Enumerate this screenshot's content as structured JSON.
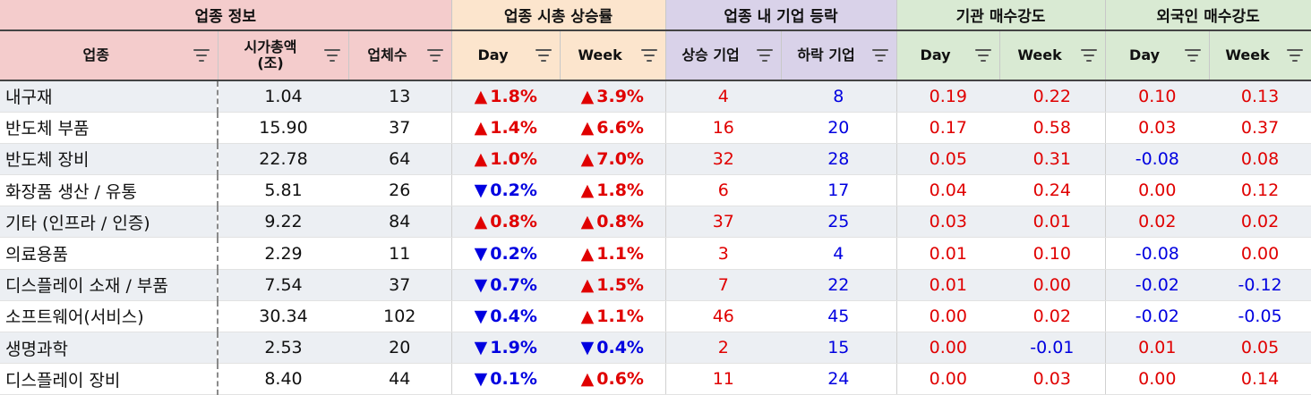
{
  "groups": {
    "info": "업종 정보",
    "cap": "업종 시총 상승률",
    "rise": "업종 내 기업 등락",
    "inst": "기관 매수강도",
    "forg": "외국인 매수강도"
  },
  "columns": {
    "sector": "업종",
    "marketcap_l1": "시가총액",
    "marketcap_l2": "(조)",
    "count": "업체수",
    "day": "Day",
    "week": "Week",
    "up_firms": "상승 기업",
    "down_firms": "하락 기업",
    "inst_day": "Day",
    "inst_week": "Week",
    "forg_day": "Day",
    "forg_week": "Week"
  },
  "icons": {
    "filter": "filter-icon",
    "up": "triangle-up-icon",
    "down": "triangle-down-icon"
  },
  "colors": {
    "up": "#e00000",
    "down": "#0000e0"
  },
  "rows": [
    {
      "sector": "내구재",
      "cap": "1.04",
      "count": "13",
      "day": "1.8%",
      "day_dir": "up",
      "week": "3.9%",
      "week_dir": "up",
      "up": "4",
      "down": "8",
      "inst_day": "0.19",
      "inst_week": "0.22",
      "forg_day": "0.10",
      "forg_week": "0.13"
    },
    {
      "sector": "반도체 부품",
      "cap": "15.90",
      "count": "37",
      "day": "1.4%",
      "day_dir": "up",
      "week": "6.6%",
      "week_dir": "up",
      "up": "16",
      "down": "20",
      "inst_day": "0.17",
      "inst_week": "0.58",
      "forg_day": "0.03",
      "forg_week": "0.37"
    },
    {
      "sector": "반도체 장비",
      "cap": "22.78",
      "count": "64",
      "day": "1.0%",
      "day_dir": "up",
      "week": "7.0%",
      "week_dir": "up",
      "up": "32",
      "down": "28",
      "inst_day": "0.05",
      "inst_week": "0.31",
      "forg_day": "-0.08",
      "forg_week": "0.08"
    },
    {
      "sector": "화장품 생산 / 유통",
      "cap": "5.81",
      "count": "26",
      "day": "0.2%",
      "day_dir": "down",
      "week": "1.8%",
      "week_dir": "up",
      "up": "6",
      "down": "17",
      "inst_day": "0.04",
      "inst_week": "0.24",
      "forg_day": "0.00",
      "forg_week": "0.12"
    },
    {
      "sector": "기타 (인프라 / 인증)",
      "cap": "9.22",
      "count": "84",
      "day": "0.8%",
      "day_dir": "up",
      "week": "0.8%",
      "week_dir": "up",
      "up": "37",
      "down": "25",
      "inst_day": "0.03",
      "inst_week": "0.01",
      "forg_day": "0.02",
      "forg_week": "0.02"
    },
    {
      "sector": "의료용품",
      "cap": "2.29",
      "count": "11",
      "day": "0.2%",
      "day_dir": "down",
      "week": "1.1%",
      "week_dir": "up",
      "up": "3",
      "down": "4",
      "inst_day": "0.01",
      "inst_week": "0.10",
      "forg_day": "-0.08",
      "forg_week": "0.00"
    },
    {
      "sector": "디스플레이 소재 / 부품",
      "cap": "7.54",
      "count": "37",
      "day": "0.7%",
      "day_dir": "down",
      "week": "1.5%",
      "week_dir": "up",
      "up": "7",
      "down": "22",
      "inst_day": "0.01",
      "inst_week": "0.00",
      "forg_day": "-0.02",
      "forg_week": "-0.12"
    },
    {
      "sector": "소프트웨어(서비스)",
      "cap": "30.34",
      "count": "102",
      "day": "0.4%",
      "day_dir": "down",
      "week": "1.1%",
      "week_dir": "up",
      "up": "46",
      "down": "45",
      "inst_day": "0.00",
      "inst_week": "0.02",
      "forg_day": "-0.02",
      "forg_week": "-0.05"
    },
    {
      "sector": "생명과학",
      "cap": "2.53",
      "count": "20",
      "day": "1.9%",
      "day_dir": "down",
      "week": "0.4%",
      "week_dir": "down",
      "up": "2",
      "down": "15",
      "inst_day": "0.00",
      "inst_week": "-0.01",
      "forg_day": "0.01",
      "forg_week": "0.05"
    },
    {
      "sector": "디스플레이 장비",
      "cap": "8.40",
      "count": "44",
      "day": "0.1%",
      "day_dir": "down",
      "week": "0.6%",
      "week_dir": "up",
      "up": "11",
      "down": "24",
      "inst_day": "0.00",
      "inst_week": "0.03",
      "forg_day": "0.00",
      "forg_week": "0.14"
    }
  ]
}
